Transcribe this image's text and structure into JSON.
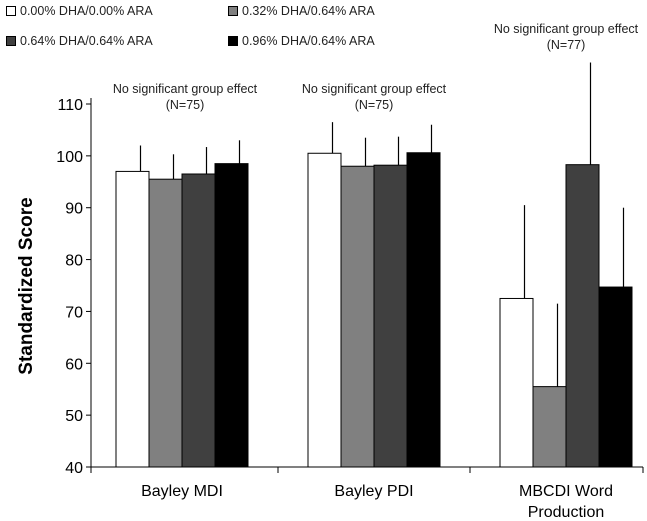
{
  "chart_data": {
    "type": "bar",
    "title": "",
    "xlabel": "",
    "ylabel": "Standardized Score",
    "ylim": [
      40,
      110
    ],
    "yticks": [
      40,
      50,
      60,
      70,
      80,
      90,
      100,
      110
    ],
    "grid": false,
    "legend_position": "top-left",
    "categories": [
      "Bayley MDI",
      "Bayley PDI",
      "MBCDI Word Production"
    ],
    "category_label_lines": [
      [
        "Bayley MDI"
      ],
      [
        "Bayley PDI"
      ],
      [
        "MBCDI Word",
        "Production"
      ]
    ],
    "series": [
      {
        "name": "0.00% DHA/0.00% ARA",
        "color": "#ffffff",
        "values": [
          97.0,
          100.5,
          72.5
        ],
        "errors": [
          5.0,
          6.0,
          18.0
        ]
      },
      {
        "name": "0.32% DHA/0.64% ARA",
        "color": "#808080",
        "values": [
          95.5,
          98.0,
          55.5
        ],
        "errors": [
          4.8,
          5.5,
          16.0
        ]
      },
      {
        "name": "0.64% DHA/0.64% ARA",
        "color": "#404040",
        "values": [
          96.5,
          98.2,
          98.3
        ],
        "errors": [
          5.2,
          5.5,
          19.7
        ]
      },
      {
        "name": "0.96% DHA/0.64% ARA",
        "color": "#000000",
        "values": [
          98.5,
          100.6,
          74.7
        ],
        "errors": [
          4.5,
          5.4,
          15.3
        ]
      }
    ],
    "annotations": [
      {
        "category": "Bayley MDI",
        "lines": [
          "No significant group effect",
          "(N=75)"
        ]
      },
      {
        "category": "Bayley PDI",
        "lines": [
          "No significant group effect",
          "(N=75)"
        ]
      },
      {
        "category": "MBCDI Word Production",
        "lines": [
          "No significant group effect",
          "(N=77)"
        ]
      }
    ]
  }
}
